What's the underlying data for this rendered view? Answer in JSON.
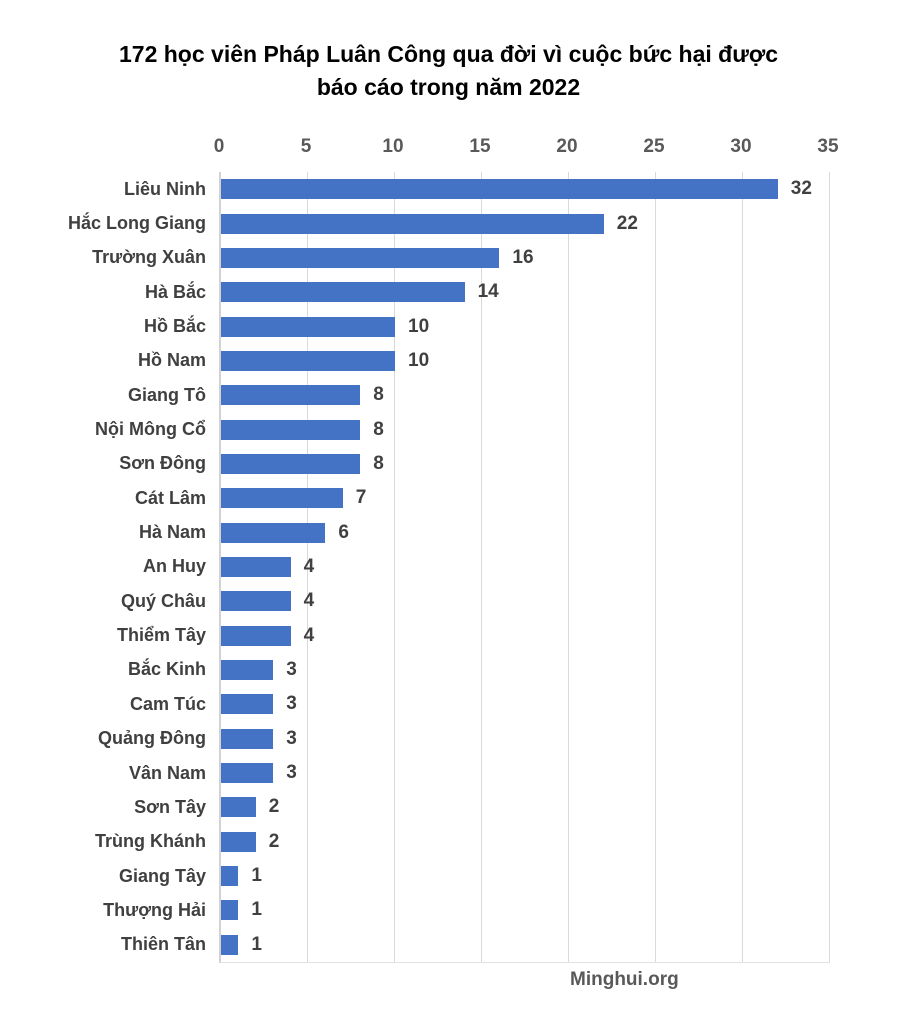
{
  "header": {
    "title_lines": [
      "172 học viên Pháp Luân Công qua đời vì cuộc bức hại được",
      "báo cáo trong năm 2022"
    ]
  },
  "footer": {
    "source": "Minghui.org"
  },
  "chart_data": {
    "type": "bar",
    "orientation": "horizontal",
    "title": "172 học viên Pháp Luân Công qua đời vì cuộc bức hại được báo cáo trong năm 2022",
    "categories": [
      "Liêu Ninh",
      "Hắc Long Giang",
      "Trường Xuân",
      "Hà Bắc",
      "Hồ Bắc",
      "Hồ Nam",
      "Giang Tô",
      "Nội Mông Cổ",
      "Sơn Đông",
      "Cát Lâm",
      "Hà Nam",
      "An Huy",
      "Quý Châu",
      "Thiểm Tây",
      "Bắc Kinh",
      "Cam Túc",
      "Quảng Đông",
      "Vân Nam",
      "Sơn Tây",
      "Trùng Khánh",
      "Giang Tây",
      "Thượng Hải",
      "Thiên Tân"
    ],
    "values": [
      32,
      22,
      16,
      14,
      10,
      10,
      8,
      8,
      8,
      7,
      6,
      4,
      4,
      4,
      3,
      3,
      3,
      3,
      2,
      2,
      1,
      1,
      1
    ],
    "x_ticks": [
      0,
      5,
      10,
      15,
      20,
      25,
      30,
      35
    ],
    "xlim": [
      0,
      35
    ],
    "value_axis_position": "top",
    "grid": true,
    "data_labels": true,
    "legend": "none",
    "total": 172,
    "colors": {
      "bar": "#4472C4",
      "gridline": "#D9D9D9",
      "tick_label": "#595959",
      "category_label": "#404040",
      "value_label": "#404040",
      "title": "#000000"
    }
  }
}
